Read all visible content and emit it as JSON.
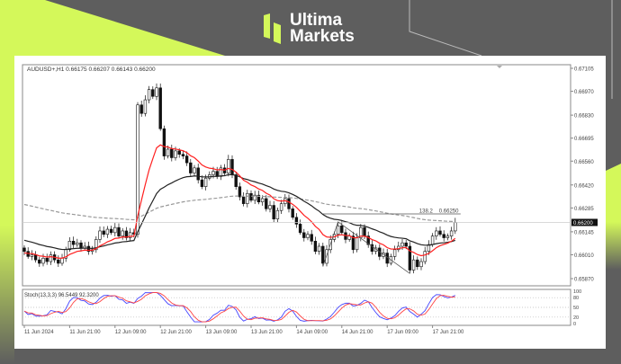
{
  "brand": {
    "line1": "Ultima",
    "line2": "Markets",
    "accent": "#d4f85a"
  },
  "chart_data": {
    "type": "candlestick",
    "header": "AUDUSD+,H1  0.66175 0.66207 0.66143 0.66200",
    "y_ticks": [
      "0.67105",
      "0.66970",
      "0.66830",
      "0.66695",
      "0.66560",
      "0.66420",
      "0.66285",
      "0.66145",
      "0.66010",
      "0.65870"
    ],
    "ylim": [
      0.6587,
      0.67105
    ],
    "current_price": "0.66200",
    "x_ticks": [
      "11 Jun 2024",
      "11 Jun 21:00",
      "12 Jun 09:00",
      "12 Jun 21:00",
      "13 Jun 09:00",
      "13 Jun 21:00",
      "14 Jun 09:00",
      "14 Jun 21:00",
      "17 Jun 09:00",
      "17 Jun 21:00"
    ],
    "fib_label": "138.2",
    "fib_price": "0.66250",
    "closes": [
      0.6603,
      0.66,
      0.6601,
      0.6598,
      0.6596,
      0.6599,
      0.6597,
      0.6601,
      0.6598,
      0.6596,
      0.6599,
      0.6604,
      0.6609,
      0.6607,
      0.6608,
      0.6605,
      0.6606,
      0.6603,
      0.6604,
      0.661,
      0.6615,
      0.6613,
      0.6616,
      0.6614,
      0.6617,
      0.6612,
      0.6615,
      0.6611,
      0.6614,
      0.6613,
      0.6689,
      0.6684,
      0.6692,
      0.6698,
      0.6694,
      0.6699,
      0.6675,
      0.6659,
      0.6663,
      0.6658,
      0.6662,
      0.666,
      0.6659,
      0.6655,
      0.6649,
      0.6652,
      0.6645,
      0.6641,
      0.6646,
      0.6648,
      0.665,
      0.6647,
      0.6652,
      0.6649,
      0.6657,
      0.6648,
      0.6641,
      0.6635,
      0.6631,
      0.6637,
      0.6633,
      0.6636,
      0.6632,
      0.6634,
      0.6628,
      0.663,
      0.6622,
      0.6627,
      0.6631,
      0.6634,
      0.6628,
      0.6623,
      0.6619,
      0.6614,
      0.6611,
      0.6613,
      0.6609,
      0.6603,
      0.6606,
      0.6596,
      0.6604,
      0.661,
      0.6613,
      0.6618,
      0.6614,
      0.661,
      0.6612,
      0.6604,
      0.6611,
      0.6617,
      0.6612,
      0.6607,
      0.6603,
      0.6605,
      0.66,
      0.6602,
      0.6596,
      0.66,
      0.6604,
      0.6606,
      0.6608,
      0.6606,
      0.6592,
      0.6598,
      0.6594,
      0.6597,
      0.6603,
      0.6607,
      0.6612,
      0.6615,
      0.6613,
      0.6611,
      0.6612,
      0.6615,
      0.662
    ],
    "ma_colors": {
      "fast": "#ff2020",
      "slow": "#222222",
      "long": "#999999"
    },
    "stoch": {
      "label": "Stoch(13,3,3) 96.5449 92.3200",
      "levels": [
        "100",
        "80",
        "50",
        "20",
        "0"
      ],
      "k_color": "#4444ff",
      "d_color": "#ff4444"
    }
  }
}
